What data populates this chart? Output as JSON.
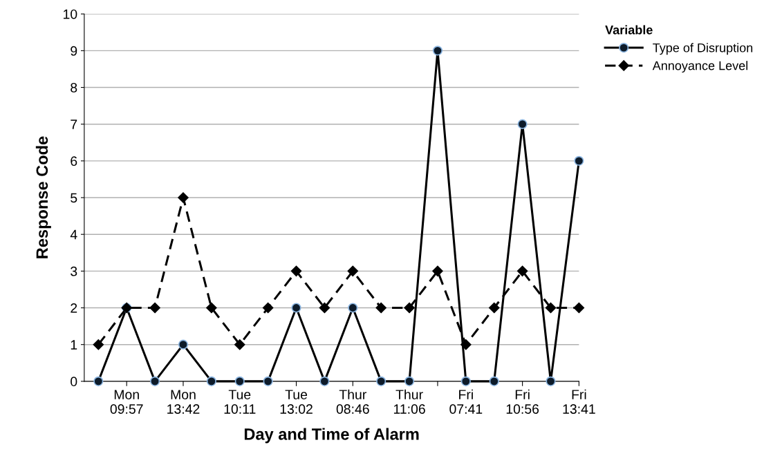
{
  "chart_data": {
    "type": "line",
    "xlabel": "Day and Time of Alarm",
    "ylabel": "Response Code",
    "legend_title": "Variable",
    "categories": [
      null,
      "Mon\n09:57",
      null,
      "Mon\n13:42",
      null,
      "Tue\n10:11",
      null,
      "Tue\n13:02",
      null,
      "Thur\n08:46",
      null,
      "Thur\n11:06",
      null,
      "Fri\n07:41",
      null,
      "Fri\n10:56",
      null,
      "Fri\n13:41"
    ],
    "series": [
      {
        "name": "Type of Disruption",
        "color": "#000000",
        "marker": "circle",
        "line_style": "solid",
        "values": [
          0,
          2,
          0,
          1,
          0,
          0,
          0,
          2,
          0,
          2,
          0,
          0,
          9,
          0,
          0,
          7,
          0,
          6
        ]
      },
      {
        "name": "Annoyance Level",
        "color": "#000000",
        "marker": "diamond",
        "line_style": "dashed",
        "values": [
          1,
          2,
          2,
          5,
          2,
          1,
          2,
          3,
          2,
          3,
          2,
          2,
          3,
          1,
          2,
          3,
          2,
          2
        ]
      }
    ],
    "ylim": [
      0,
      10
    ],
    "yticks": [
      0,
      1,
      2,
      3,
      4,
      5,
      6,
      7,
      8,
      9,
      10
    ],
    "grid": "y",
    "legend": "top right"
  }
}
